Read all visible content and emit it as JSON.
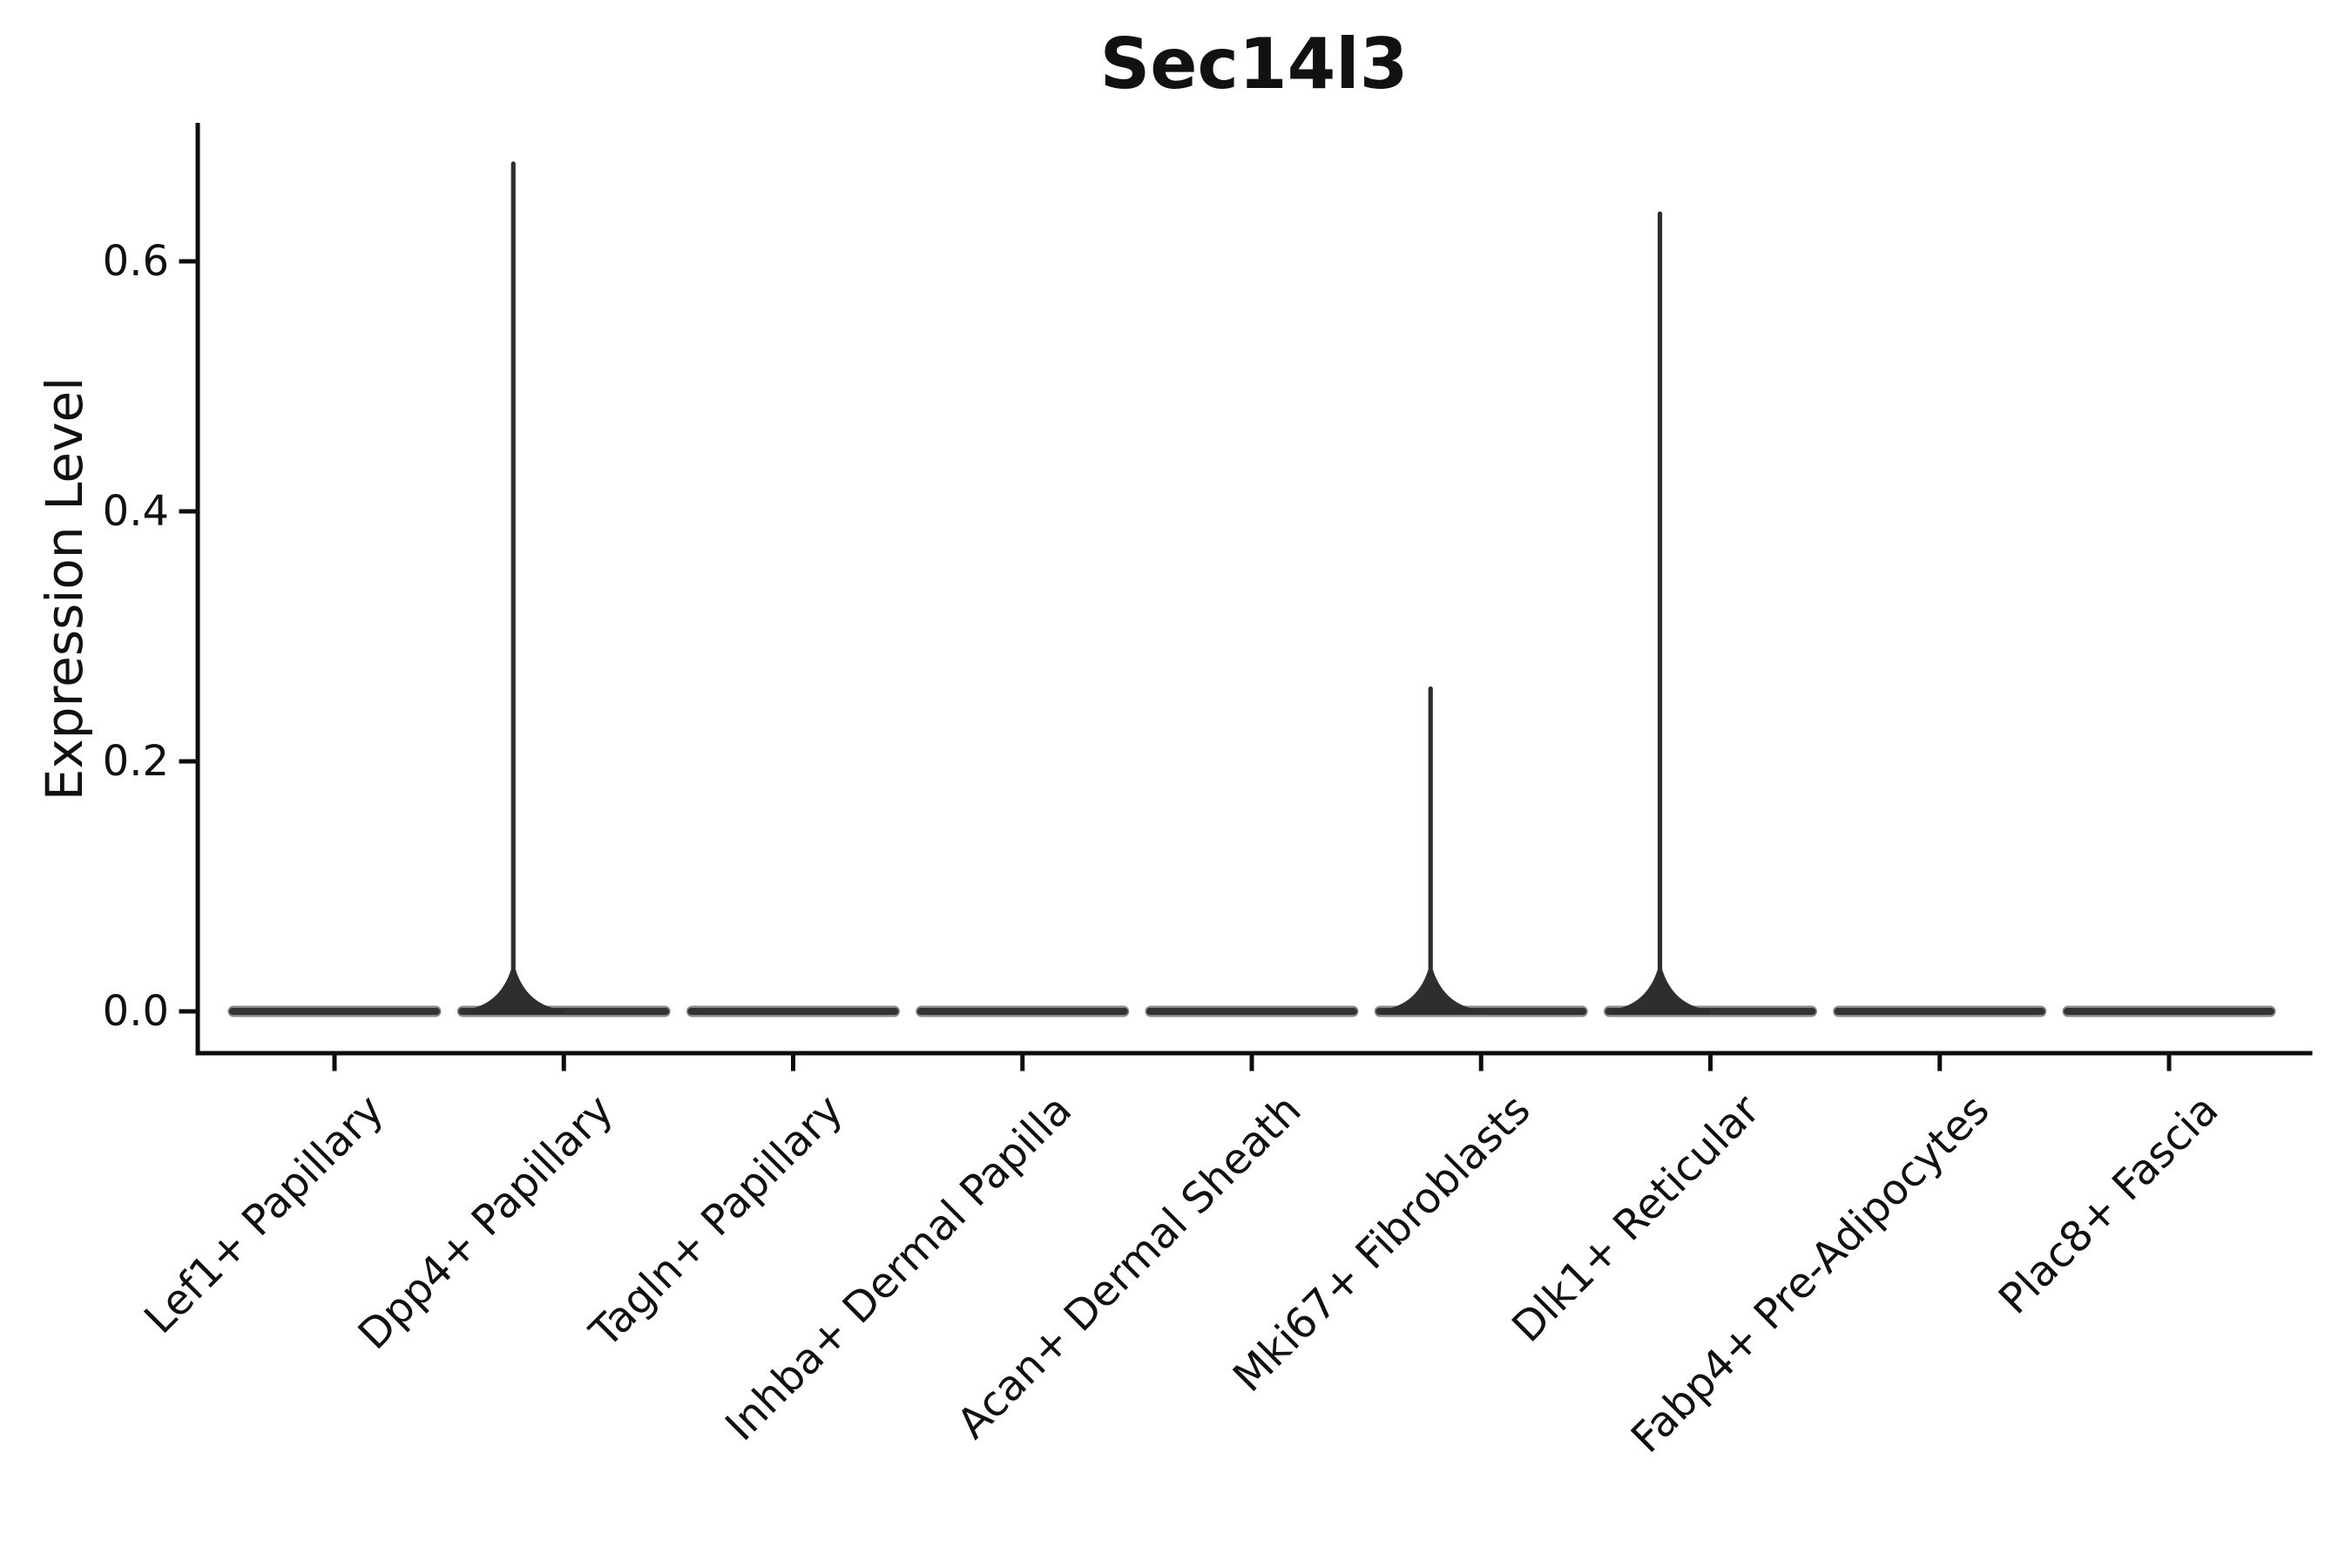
{
  "chart_data": {
    "type": "violin",
    "title": "Sec14l3",
    "ylabel": "Expression Level",
    "xlabel": "",
    "ytick_labels": [
      "0.0",
      "0.2",
      "0.4",
      "0.6"
    ],
    "ytick_values": [
      0.0,
      0.2,
      0.4,
      0.6
    ],
    "ylim": [
      -0.034,
      0.712
    ],
    "grid": false,
    "legend": null,
    "categories": [
      "Lef1+ Papillary",
      "Dpp4+ Papillary",
      "Tagln+ Papillary",
      "Inhba+ Dermal Papilla",
      "Acan+ Dermal Sheath",
      "Mki67+ Fibroblasts",
      "Dlk1+ Reticular",
      "Fabp4+ Pre-Adipocytes",
      "Plac8+ Fascia"
    ],
    "violins": [
      {
        "category": "Lef1+ Papillary",
        "bulk_value": 0.0,
        "max_value": 0.0,
        "has_spike": false
      },
      {
        "category": "Dpp4+ Papillary",
        "bulk_value": 0.0,
        "max_value": 0.68,
        "has_spike": true
      },
      {
        "category": "Tagln+ Papillary",
        "bulk_value": 0.0,
        "max_value": 0.0,
        "has_spike": false
      },
      {
        "category": "Inhba+ Dermal Papilla",
        "bulk_value": 0.0,
        "max_value": 0.0,
        "has_spike": false
      },
      {
        "category": "Acan+ Dermal Sheath",
        "bulk_value": 0.0,
        "max_value": 0.0,
        "has_spike": false
      },
      {
        "category": "Mki67+ Fibroblasts",
        "bulk_value": 0.0,
        "max_value": 0.26,
        "has_spike": true
      },
      {
        "category": "Dlk1+ Reticular",
        "bulk_value": 0.0,
        "max_value": 0.64,
        "has_spike": true
      },
      {
        "category": "Fabp4+ Pre-Adipocytes",
        "bulk_value": 0.0,
        "max_value": 0.0,
        "has_spike": false
      },
      {
        "category": "Plac8+ Fascia",
        "bulk_value": 0.0,
        "max_value": 0.0,
        "has_spike": false
      }
    ],
    "colors": {
      "violin_body": "#333333",
      "violin_halo": "#8a8a8a",
      "spike": "#2e2e2e",
      "axis": "#0d0d0d",
      "text": "#111111",
      "background": "#ffffff"
    }
  }
}
